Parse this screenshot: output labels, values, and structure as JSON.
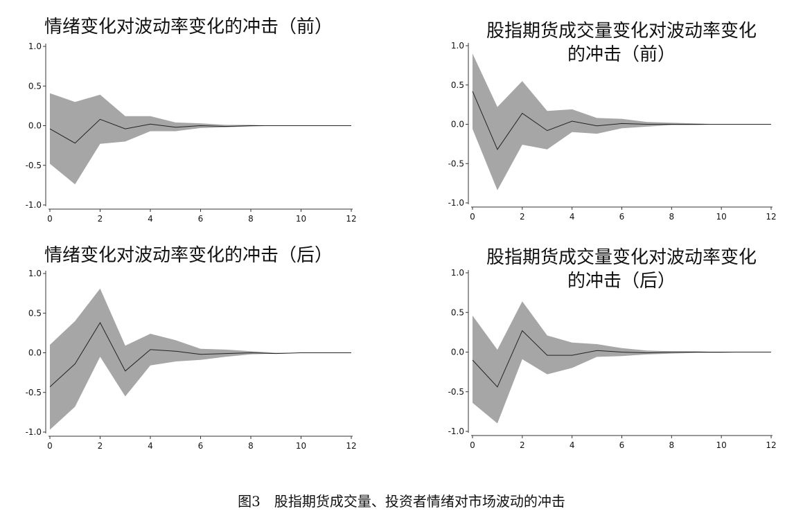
{
  "figure_caption": "图3　股指期货成交量、投资者情绪对市场波动的冲击",
  "chart_data": [
    {
      "type": "area",
      "title_lines": [
        "情绪变化对波动率变化的冲击（前）"
      ],
      "xlim": [
        0,
        12
      ],
      "ylim": [
        -1.0,
        1.0
      ],
      "x_ticks": [
        0,
        2,
        4,
        6,
        8,
        10,
        12
      ],
      "x_tick_labels": [
        "0",
        "2",
        "4",
        "6",
        "8",
        "10",
        "12"
      ],
      "y_ticks": [
        1.0,
        0.5,
        0.0,
        -0.5,
        -1.0
      ],
      "y_tick_labels": [
        "1.0",
        "0.5",
        "0.0",
        "-0.5",
        "-1.0"
      ],
      "x": [
        0,
        1,
        2,
        3,
        4,
        5,
        6,
        7,
        8,
        9,
        10,
        11,
        12
      ],
      "series": [
        {
          "role": "upper",
          "values": [
            0.41,
            0.3,
            0.39,
            0.12,
            0.12,
            0.04,
            0.03,
            0.01,
            0.01,
            0.0,
            0.0,
            0.0,
            0.0
          ]
        },
        {
          "role": "estimate",
          "values": [
            -0.04,
            -0.22,
            0.08,
            -0.04,
            0.02,
            -0.02,
            0.0,
            -0.01,
            0.0,
            0.0,
            0.0,
            0.0,
            0.0
          ]
        },
        {
          "role": "lower",
          "values": [
            -0.48,
            -0.74,
            -0.23,
            -0.2,
            -0.07,
            -0.07,
            -0.03,
            -0.02,
            -0.01,
            0.0,
            0.0,
            0.0,
            0.0
          ]
        }
      ],
      "colors": {
        "band": "#a6a6a6",
        "line": "#222222"
      }
    },
    {
      "type": "area",
      "title_lines": [
        "股指期货成交量变化对波动率变化",
        "的冲击（前）"
      ],
      "xlim": [
        0,
        12
      ],
      "ylim": [
        -1.0,
        1.0
      ],
      "x_ticks": [
        0,
        2,
        4,
        6,
        8,
        10,
        12
      ],
      "x_tick_labels": [
        "0",
        "2",
        "4",
        "6",
        "8",
        "10",
        "12"
      ],
      "y_ticks": [
        1.0,
        0.5,
        0.0,
        -0.5,
        -1.0
      ],
      "y_tick_labels": [
        "1.0",
        "0.5",
        "0.0",
        "-0.5",
        "-1.0"
      ],
      "x": [
        0,
        1,
        2,
        3,
        4,
        5,
        6,
        7,
        8,
        9,
        10,
        11,
        12
      ],
      "series": [
        {
          "role": "upper",
          "values": [
            0.9,
            0.22,
            0.55,
            0.17,
            0.19,
            0.08,
            0.07,
            0.03,
            0.02,
            0.01,
            0.0,
            0.0,
            0.0
          ]
        },
        {
          "role": "estimate",
          "values": [
            0.42,
            -0.32,
            0.14,
            -0.08,
            0.04,
            -0.02,
            0.01,
            0.0,
            0.0,
            0.0,
            0.0,
            0.0,
            0.0
          ]
        },
        {
          "role": "lower",
          "values": [
            -0.06,
            -0.84,
            -0.26,
            -0.32,
            -0.1,
            -0.12,
            -0.05,
            -0.03,
            -0.01,
            -0.01,
            0.0,
            0.0,
            0.0
          ]
        }
      ],
      "colors": {
        "band": "#a6a6a6",
        "line": "#222222"
      }
    },
    {
      "type": "area",
      "title_lines": [
        "情绪变化对波动率变化的冲击（后）"
      ],
      "xlim": [
        0,
        12
      ],
      "ylim": [
        -1.0,
        1.0
      ],
      "x_ticks": [
        0,
        2,
        4,
        6,
        8,
        10,
        12
      ],
      "x_tick_labels": [
        "0",
        "2",
        "4",
        "6",
        "8",
        "10",
        "12"
      ],
      "y_ticks": [
        1.0,
        0.5,
        0.0,
        -0.5,
        -1.0
      ],
      "y_tick_labels": [
        "1.0",
        "0.5",
        "0.0",
        "-0.5",
        "-1.0"
      ],
      "x": [
        0,
        1,
        2,
        3,
        4,
        5,
        6,
        7,
        8,
        9,
        10,
        11,
        12
      ],
      "series": [
        {
          "role": "upper",
          "values": [
            0.1,
            0.4,
            0.81,
            0.09,
            0.24,
            0.16,
            0.05,
            0.04,
            0.02,
            0.0,
            0.0,
            0.0,
            0.0
          ]
        },
        {
          "role": "estimate",
          "values": [
            -0.43,
            -0.14,
            0.38,
            -0.23,
            0.04,
            0.02,
            -0.02,
            -0.01,
            0.0,
            -0.01,
            0.0,
            0.0,
            0.0
          ]
        },
        {
          "role": "lower",
          "values": [
            -0.97,
            -0.68,
            -0.05,
            -0.55,
            -0.16,
            -0.11,
            -0.09,
            -0.05,
            -0.02,
            -0.01,
            0.0,
            0.0,
            0.0
          ]
        }
      ],
      "colors": {
        "band": "#a6a6a6",
        "line": "#222222"
      }
    },
    {
      "type": "area",
      "title_lines": [
        "股指期货成交量变化对波动率变化",
        "的冲击（后）"
      ],
      "xlim": [
        0,
        12
      ],
      "ylim": [
        -1.0,
        1.0
      ],
      "x_ticks": [
        0,
        2,
        4,
        6,
        8,
        10,
        12
      ],
      "x_tick_labels": [
        "0",
        "2",
        "4",
        "6",
        "8",
        "10",
        "12"
      ],
      "y_ticks": [
        1.0,
        0.5,
        0.0,
        -0.5,
        -1.0
      ],
      "y_tick_labels": [
        "1.0",
        "0.5",
        "0.0",
        "-0.5",
        "-1.0"
      ],
      "x": [
        0,
        1,
        2,
        3,
        4,
        5,
        6,
        7,
        8,
        9,
        10,
        11,
        12
      ],
      "series": [
        {
          "role": "upper",
          "values": [
            0.46,
            0.03,
            0.64,
            0.21,
            0.12,
            0.1,
            0.05,
            0.02,
            0.01,
            0.01,
            0.0,
            0.0,
            0.0
          ]
        },
        {
          "role": "estimate",
          "values": [
            -0.1,
            -0.44,
            0.27,
            -0.04,
            -0.04,
            0.02,
            0.0,
            -0.01,
            0.0,
            0.0,
            0.0,
            0.0,
            0.0
          ]
        },
        {
          "role": "lower",
          "values": [
            -0.64,
            -0.9,
            -0.09,
            -0.28,
            -0.2,
            -0.06,
            -0.05,
            -0.03,
            -0.02,
            -0.01,
            -0.01,
            0.0,
            0.0
          ]
        }
      ],
      "colors": {
        "band": "#a6a6a6",
        "line": "#222222"
      }
    }
  ]
}
